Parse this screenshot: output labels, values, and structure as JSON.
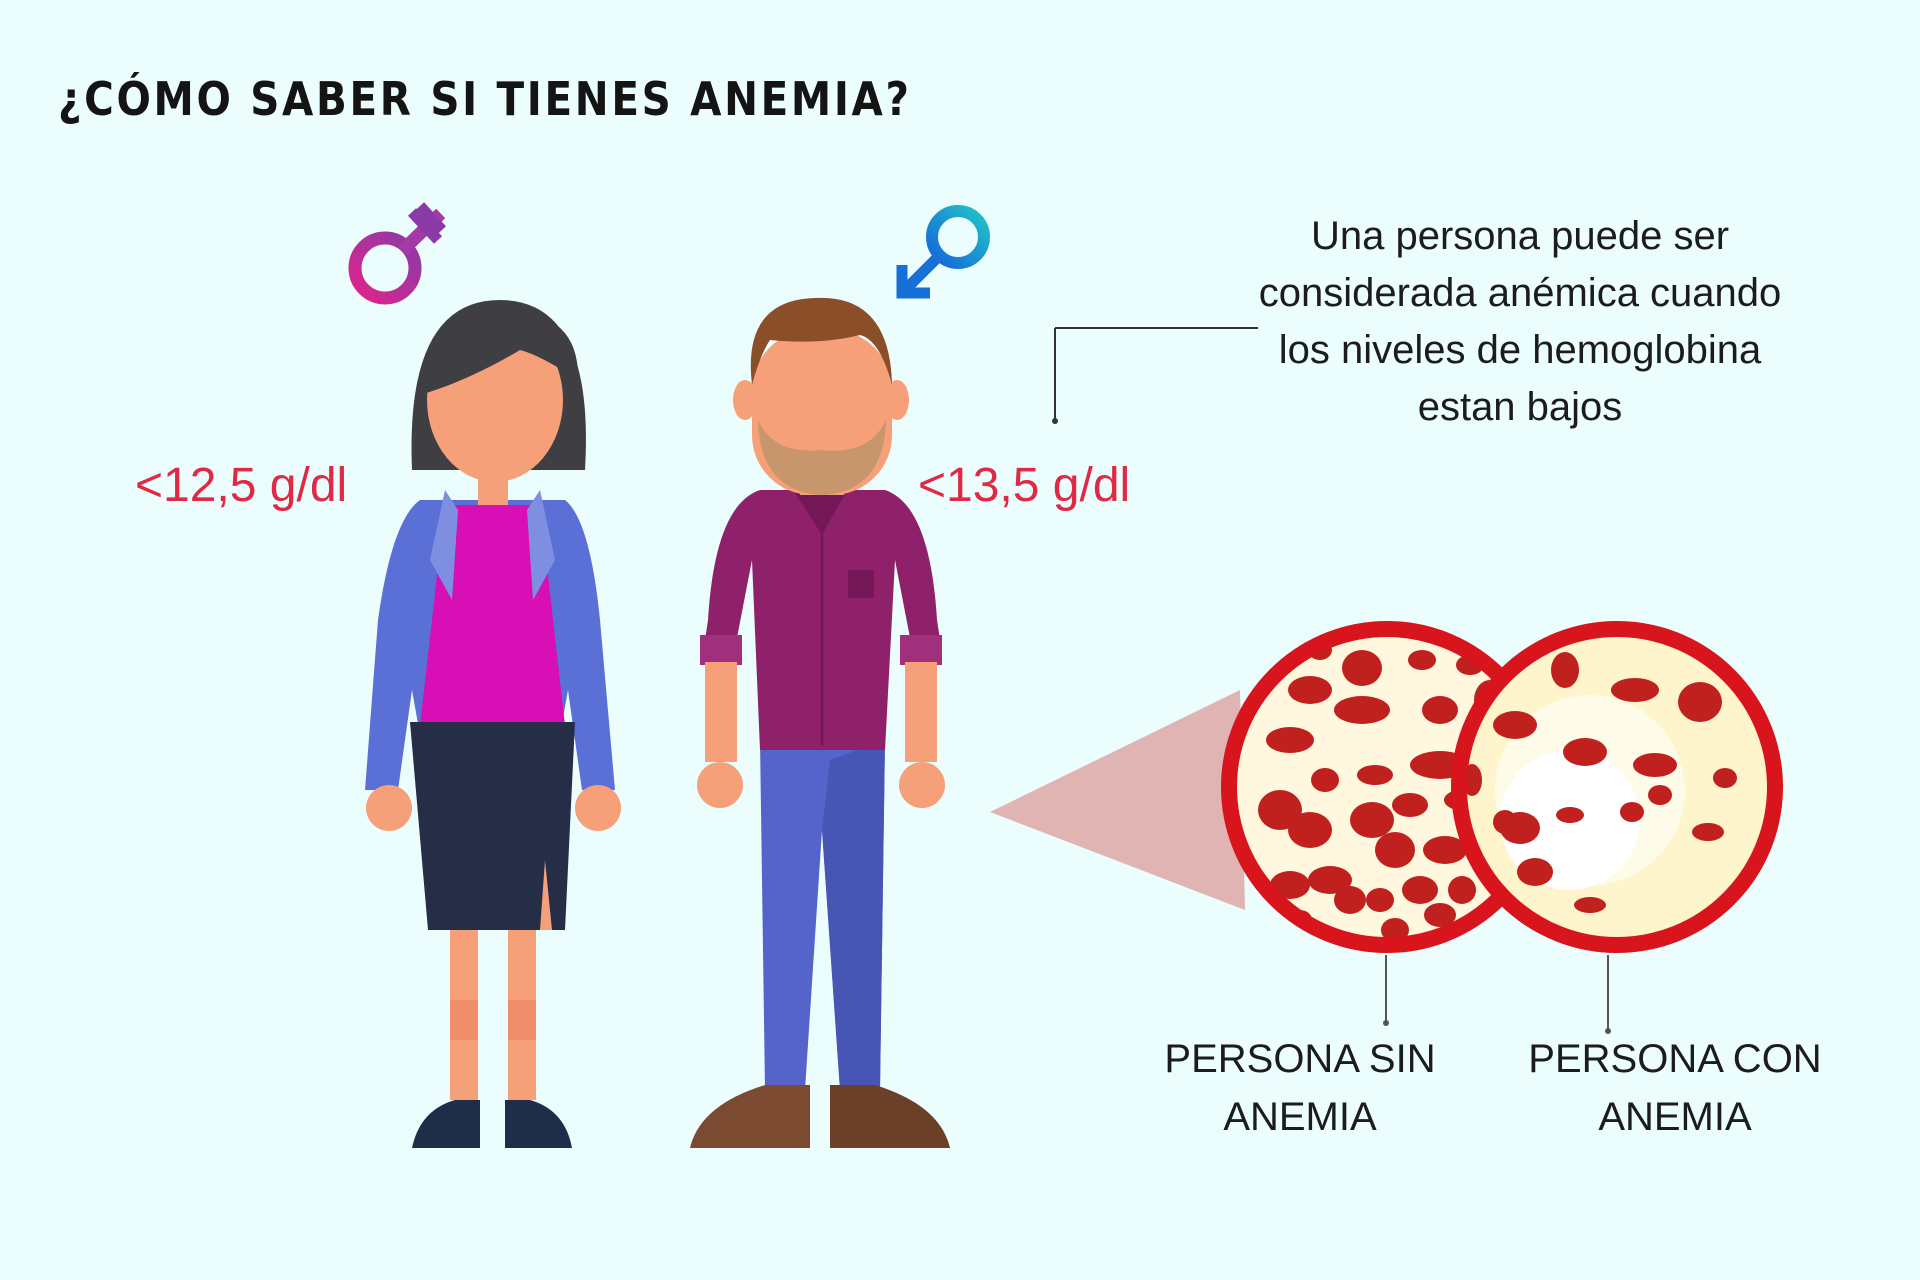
{
  "title": "¿CÓMO SABER SI TIENES ANEMIA?",
  "definition": "Una persona puede ser considerada anémica cuando los niveles de hemoglobina estan bajos",
  "female": {
    "threshold": "<12,5 g/dl",
    "symbol_color": "#e0248c"
  },
  "male": {
    "threshold": "<13,5 g/dl",
    "symbol_color": "#1aa6d8"
  },
  "samples": {
    "healthy": {
      "label": "PERSONA SIN ANEMIA"
    },
    "anemic": {
      "label": "PERSONA CON ANEMIA"
    }
  },
  "colors": {
    "threshold": "#e02a45",
    "blood_cell": "#c0201e",
    "ring": "#d8141c"
  }
}
